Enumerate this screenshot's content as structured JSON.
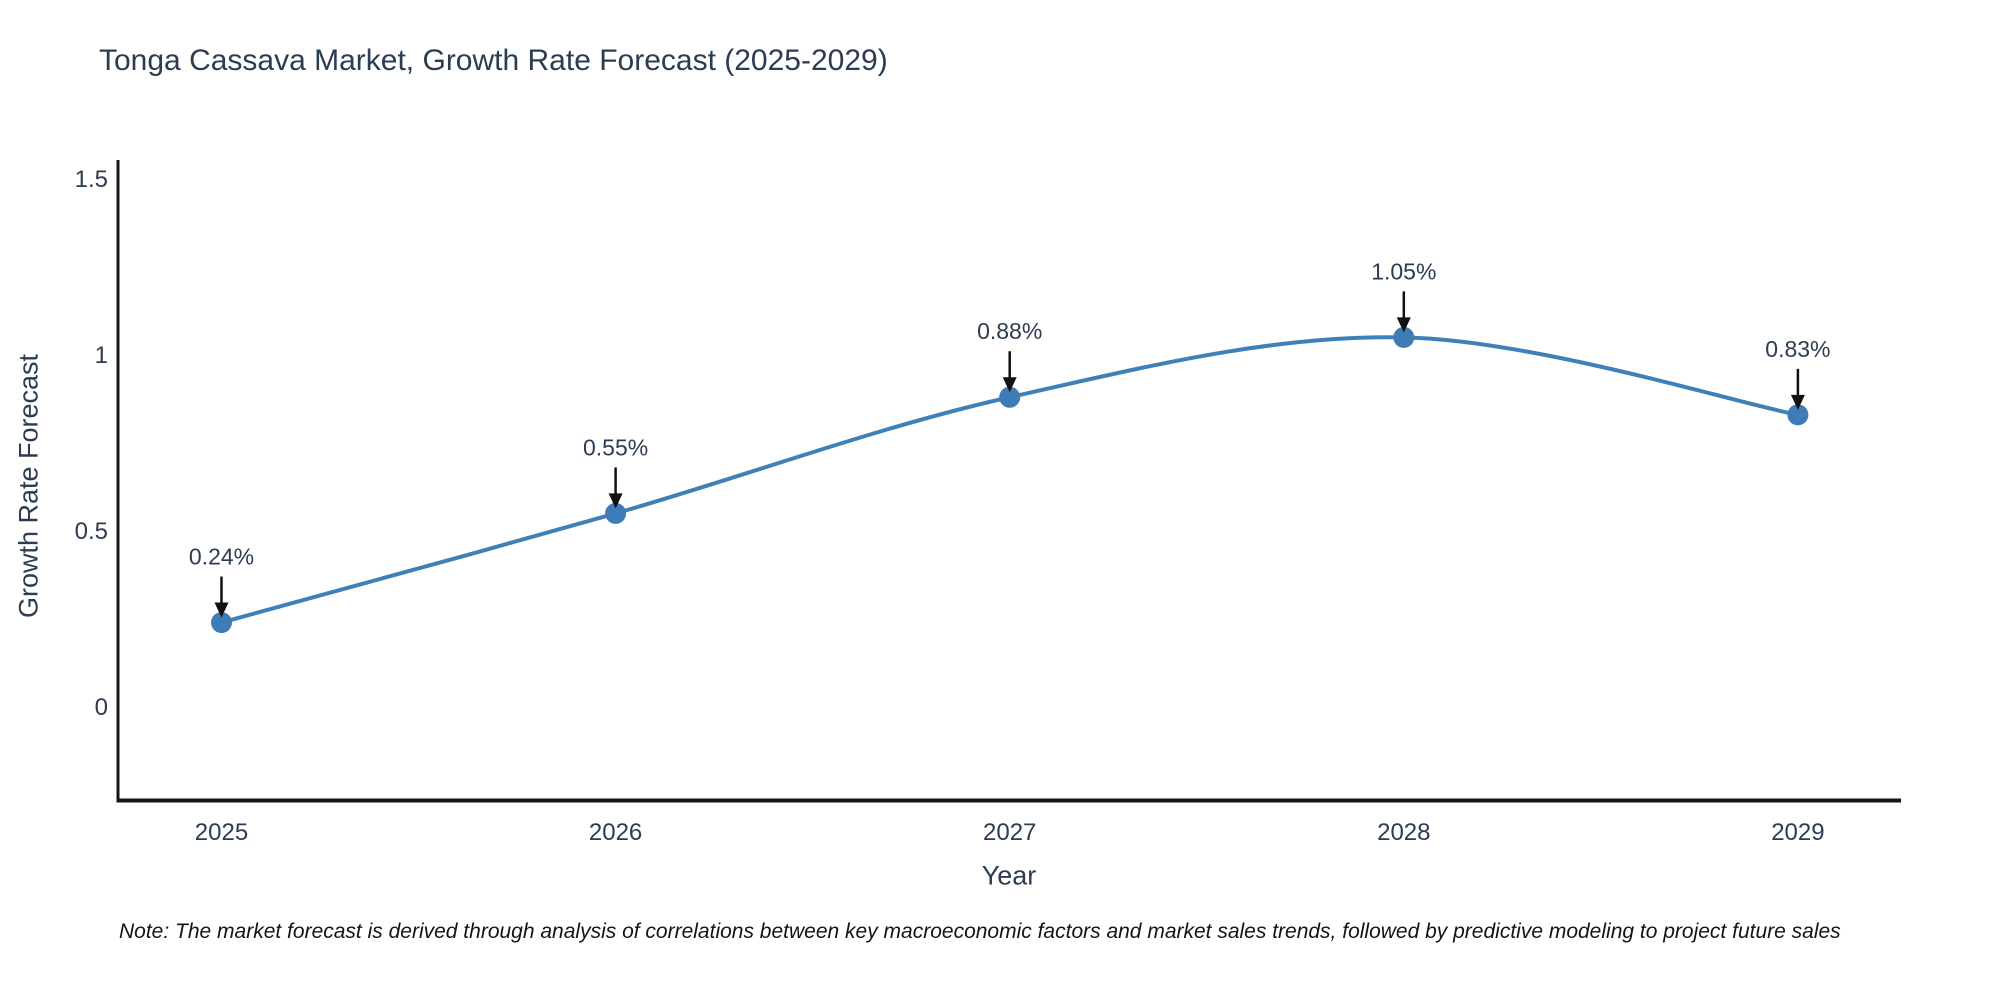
{
  "chart": {
    "title": "Tonga Cassava Market, Growth Rate Forecast (2025-2029)",
    "xlabel": "Year",
    "ylabel": "Growth Rate Forecast",
    "note": "Note: The market forecast is derived through analysis of correlations between key macroeconomic factors and market sales trends, followed by predictive modeling to project future sales"
  },
  "chart_data": {
    "type": "line",
    "title": "Tonga Cassava Market, Growth Rate Forecast (2025-2029)",
    "xlabel": "Year",
    "ylabel": "Growth Rate Forecast",
    "categories": [
      "2025",
      "2026",
      "2027",
      "2028",
      "2029"
    ],
    "series": [
      {
        "name": "Growth Rate Forecast",
        "values": [
          0.24,
          0.55,
          0.88,
          1.05,
          0.83
        ],
        "point_labels": [
          "0.24%",
          "0.55%",
          "0.88%",
          "1.05%",
          "0.83%"
        ]
      }
    ],
    "ytick_values": [
      0,
      0.5,
      1,
      1.5
    ],
    "ytick_labels": [
      "0",
      "0.5",
      "1",
      "1.5"
    ],
    "ylim": [
      -0.26,
      1.55
    ],
    "grid": false,
    "legend": false,
    "line_shape": "spline",
    "annotation_arrows": true,
    "colors": {
      "line": "#4080b8",
      "marker": "#3d7cb5",
      "axis": "#161616",
      "tick_text": "#2b3c53",
      "annotation_text": "#2b3c53",
      "arrow": "#111111",
      "background": "#ffffff"
    }
  }
}
